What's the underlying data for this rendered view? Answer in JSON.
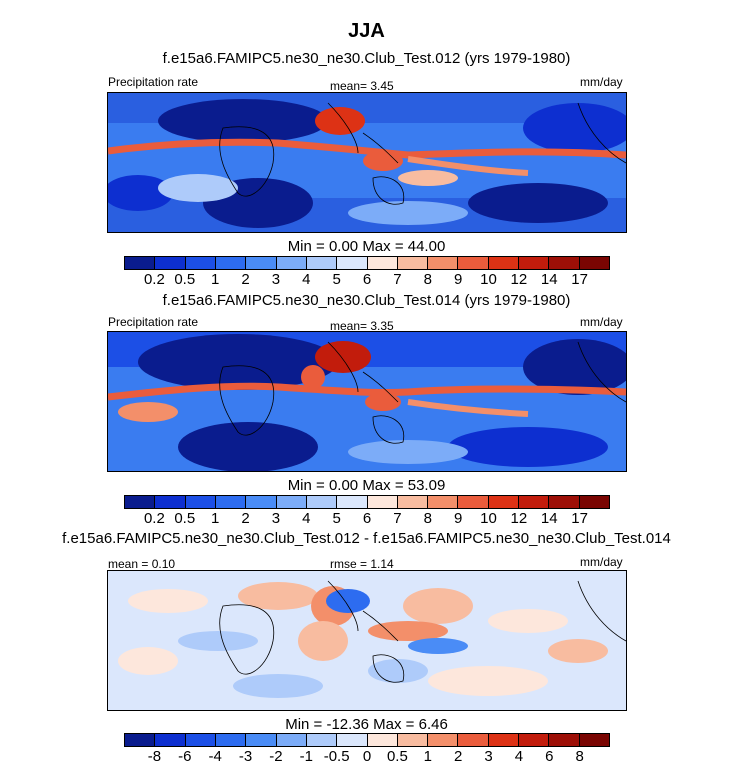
{
  "page": {
    "title": "JJA"
  },
  "chart_data": [
    {
      "type": "heatmap",
      "title": "f.e15a6.FAMIPC5.ne30_ne30.Club_Test.012 (yrs 1979-1980)",
      "left_label": "Precipitation rate",
      "center_label": "mean=   3.45",
      "right_label": "mm/day",
      "minmax": "Min =   0.00 Max =  44.00",
      "colorbar": {
        "colors": [
          "#0a1c8e",
          "#0d2fd0",
          "#1c4fe6",
          "#2d6cf0",
          "#4a8cf6",
          "#7cacf8",
          "#aecbfa",
          "#dbe7fc",
          "#fde7dc",
          "#f8bca0",
          "#f38f6a",
          "#ea5c3c",
          "#dd3215",
          "#c21c0c",
          "#9d0f07",
          "#7a0502"
        ],
        "tick_labels": [
          "0.2",
          "0.5",
          "1",
          "2",
          "3",
          "4",
          "5",
          "6",
          "7",
          "8",
          "9",
          "10",
          "12",
          "14",
          "17"
        ]
      }
    },
    {
      "type": "heatmap",
      "title": "f.e15a6.FAMIPC5.ne30_ne30.Club_Test.014 (yrs 1979-1980)",
      "left_label": "Precipitation rate",
      "center_label": "mean=   3.35",
      "right_label": "mm/day",
      "minmax": "Min =   0.00 Max =  53.09",
      "colorbar": {
        "colors": [
          "#0a1c8e",
          "#0d2fd0",
          "#1c4fe6",
          "#2d6cf0",
          "#4a8cf6",
          "#7cacf8",
          "#aecbfa",
          "#dbe7fc",
          "#fde7dc",
          "#f8bca0",
          "#f38f6a",
          "#ea5c3c",
          "#dd3215",
          "#c21c0c",
          "#9d0f07",
          "#7a0502"
        ],
        "tick_labels": [
          "0.2",
          "0.5",
          "1",
          "2",
          "3",
          "4",
          "5",
          "6",
          "7",
          "8",
          "9",
          "10",
          "12",
          "14",
          "17"
        ]
      }
    },
    {
      "type": "heatmap",
      "title": "f.e15a6.FAMIPC5.ne30_ne30.Club_Test.012 - f.e15a6.FAMIPC5.ne30_ne30.Club_Test.014",
      "left_label": "mean =   0.10",
      "center_label": "rmse =   1.14",
      "right_label": "mm/day",
      "minmax": "Min = -12.36 Max =   6.46",
      "colorbar": {
        "colors": [
          "#0a1c8e",
          "#0d2fd0",
          "#1c4fe6",
          "#2d6cf0",
          "#4a8cf6",
          "#7cacf8",
          "#aecbfa",
          "#dbe7fc",
          "#fde7dc",
          "#f8bca0",
          "#f38f6a",
          "#ea5c3c",
          "#dd3215",
          "#c21c0c",
          "#9d0f07",
          "#7a0502"
        ],
        "tick_labels": [
          "-8",
          "-6",
          "-4",
          "-3",
          "-2",
          "-1",
          "-0.5",
          "0",
          "0.5",
          "1",
          "2",
          "3",
          "4",
          "6",
          "8"
        ]
      }
    }
  ]
}
